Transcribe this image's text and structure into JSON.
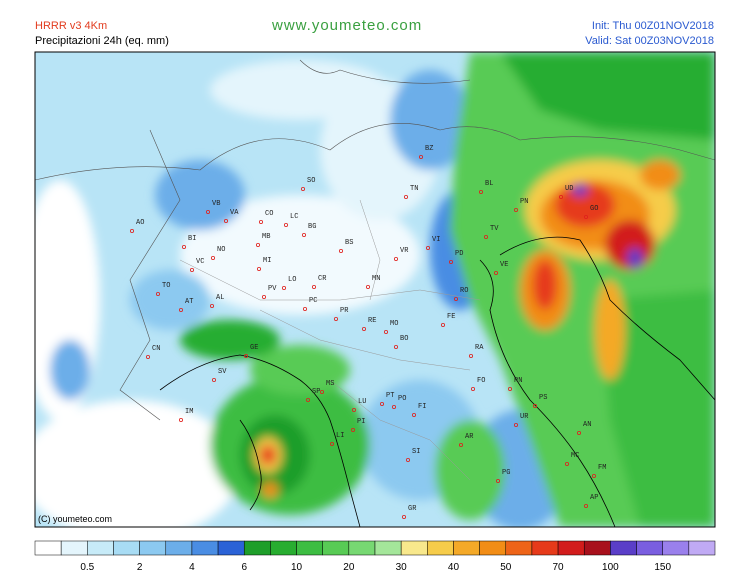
{
  "header": {
    "model": "HRRR v3 4Km",
    "product": "Precipitazioni 24h (eq. mm)",
    "site": "www.youmeteo.com",
    "init": "Init: Thu 00Z01NOV2018",
    "valid": "Valid: Sat 00Z03NOV2018"
  },
  "map": {
    "copyright": "(C) youmeteo.com",
    "cities": [
      "BZ",
      "SO",
      "TN",
      "BL",
      "UD",
      "PN",
      "GO",
      "AO",
      "VB",
      "VA",
      "CO",
      "LC",
      "BG",
      "TV",
      "BI",
      "NO",
      "MB",
      "MI",
      "BS",
      "VR",
      "VI",
      "PD",
      "VE",
      "VC",
      "LO",
      "CR",
      "MN",
      "RO",
      "TO",
      "AT",
      "AL",
      "PV",
      "PC",
      "PR",
      "RE",
      "MO",
      "FE",
      "CN",
      "GE",
      "BO",
      "RA",
      "SV",
      "MS",
      "SP",
      "FO",
      "RN",
      "PS",
      "IM",
      "LU",
      "PT",
      "PO",
      "FI",
      "UR",
      "PI",
      "AR",
      "AN",
      "LI",
      "SI",
      "MC",
      "FM",
      "PG",
      "GR",
      "AP"
    ]
  },
  "legend": {
    "colors": [
      "#ffffff",
      "#e4f5fc",
      "#c7ebf8",
      "#a8dcf4",
      "#8cc9f0",
      "#6caee9",
      "#4a8de3",
      "#2b62d6",
      "#1e9e2a",
      "#28ad30",
      "#3dbd42",
      "#58cb55",
      "#77d872",
      "#a4e69a",
      "#f8e88c",
      "#f6cc4a",
      "#f4a928",
      "#f28d16",
      "#ee6418",
      "#e63a1a",
      "#d21c1c",
      "#a8101c",
      "#5a3ec8",
      "#7a5ee0",
      "#9a80ec",
      "#c0aaf4"
    ],
    "labels": [
      "0.5",
      "2",
      "4",
      "6",
      "10",
      "20",
      "30",
      "40",
      "50",
      "70",
      "100",
      "150"
    ]
  }
}
